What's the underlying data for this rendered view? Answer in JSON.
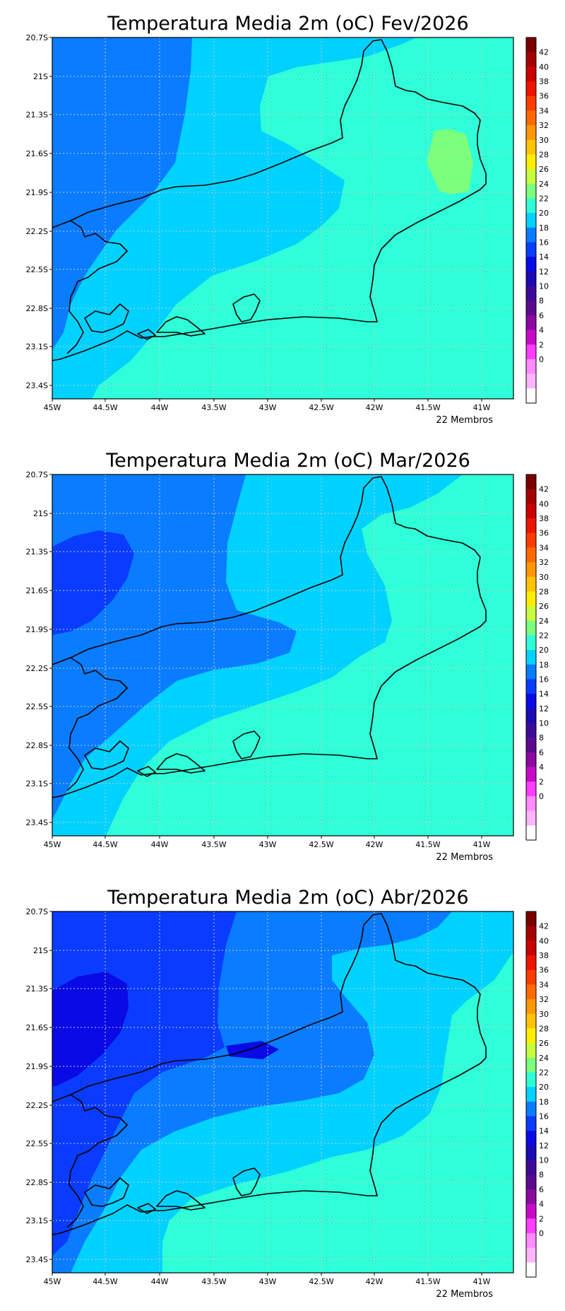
{
  "panels": [
    {
      "title": "Temperatura Media 2m (oC) Fev/2026",
      "footer": "22 Membros"
    },
    {
      "title": "Temperatura Media 2m (oC) Mar/2026",
      "footer": "22 Membros"
    },
    {
      "title": "Temperatura Media 2m (oC) Abr/2026",
      "footer": "22 Membros"
    }
  ],
  "lat_labels": [
    "20.7S",
    "21S",
    "21.3S",
    "21.6S",
    "21.9S",
    "22.2S",
    "22.5S",
    "22.8S",
    "23.1S",
    "23.4S"
  ],
  "lon_labels": [
    "45W",
    "44.5W",
    "44W",
    "43.5W",
    "43W",
    "42.5W",
    "42W",
    "41.5W",
    "41W"
  ],
  "colorbar": {
    "labels": [
      "42",
      "40",
      "38",
      "36",
      "34",
      "32",
      "30",
      "28",
      "26",
      "24",
      "22",
      "20",
      "18",
      "16",
      "14",
      "12",
      "10",
      "8",
      "6",
      "4",
      "2",
      "0"
    ],
    "colors": [
      "#7a0000",
      "#a40000",
      "#cc0000",
      "#ee1400",
      "#ff3c00",
      "#ff6a00",
      "#ff9800",
      "#ffc400",
      "#ffee00",
      "#c8ff3c",
      "#7cff7c",
      "#2effd8",
      "#00d2ff",
      "#0a7cff",
      "#0a3cff",
      "#0a0ae6",
      "#1a0ab4",
      "#3c0a96",
      "#5a0a8c",
      "#8c0aa0",
      "#c80ac8",
      "#ff3cff",
      "#ff8cff",
      "#ffb4ff",
      "#ffffff"
    ]
  },
  "fill_colors": {
    "c26": "#7cff7c",
    "c24": "#2effd8",
    "c22": "#00d2ff",
    "c20": "#0a7cff",
    "c18": "#0a3cff",
    "c16": "#0a0ae6"
  }
}
